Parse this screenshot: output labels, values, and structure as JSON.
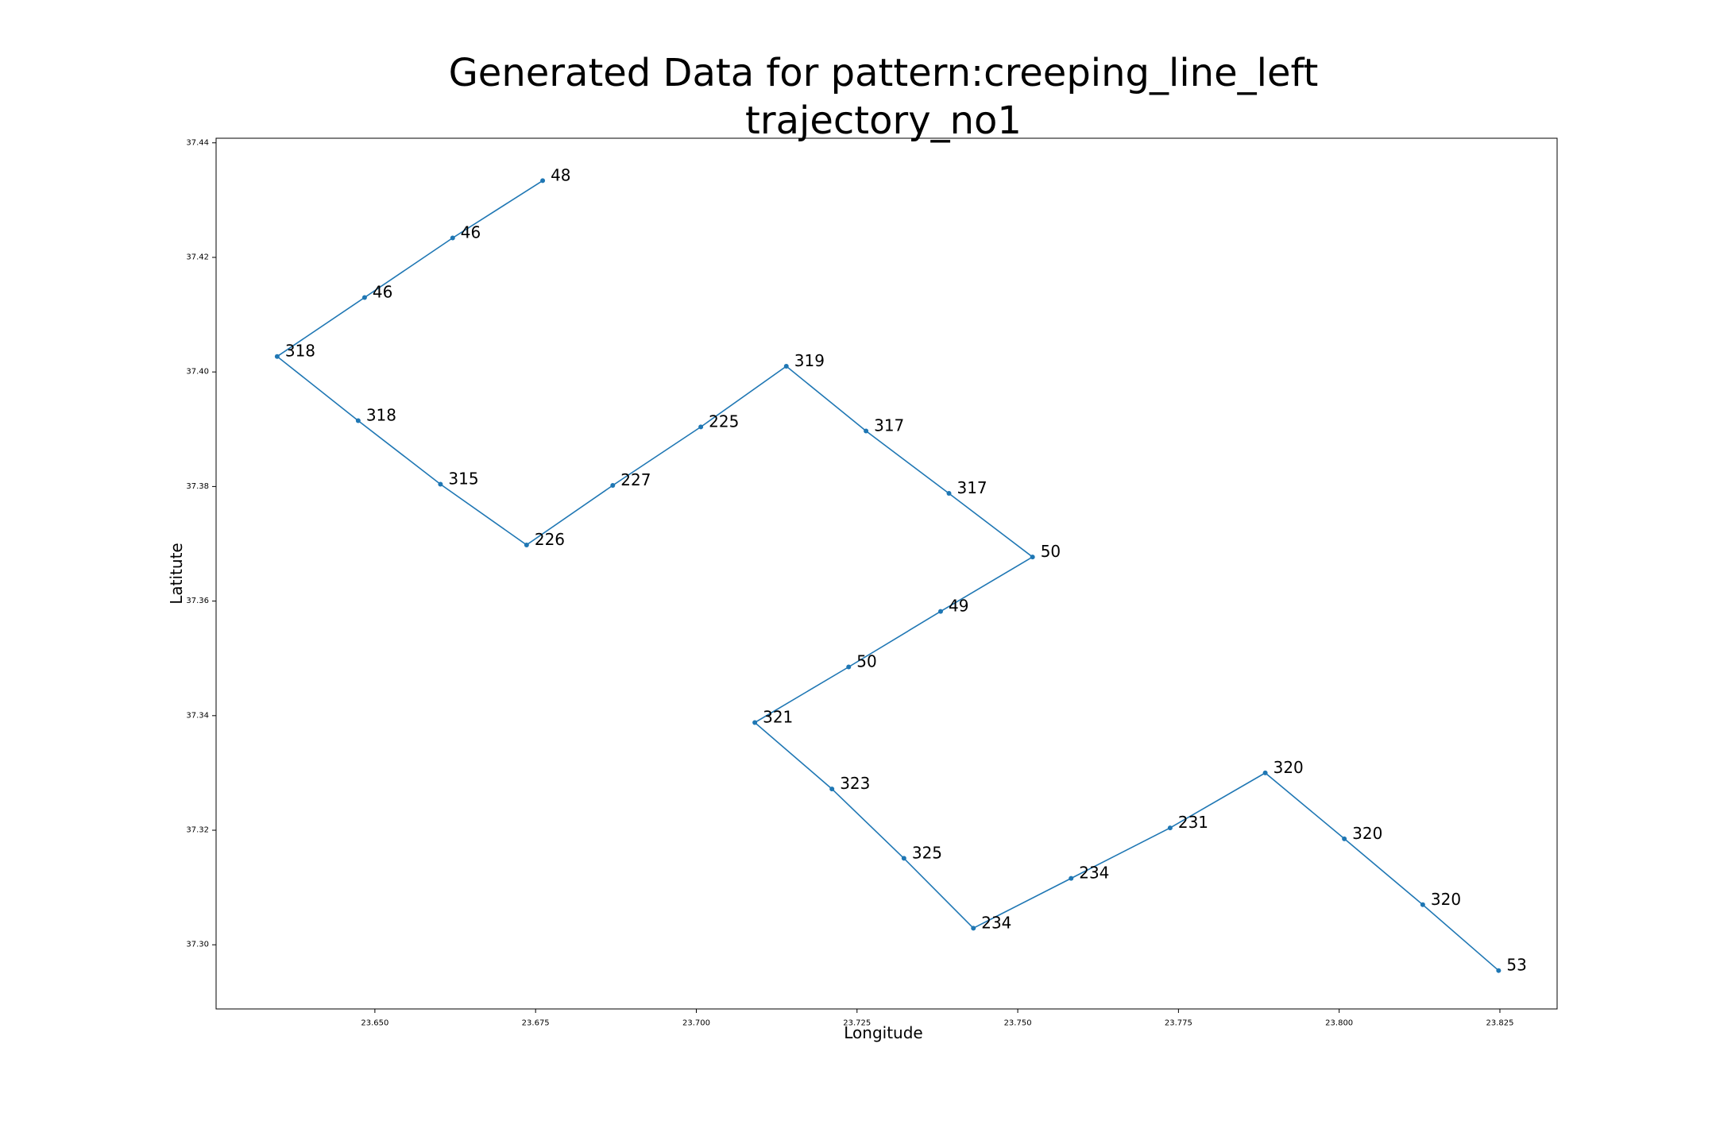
{
  "chart_data": {
    "type": "line",
    "title_line1": "Generated Data for pattern:creeping_line_left",
    "title_line2": "trajectory_no1",
    "xlabel": "Longitude",
    "ylabel": "Latitute",
    "xlim": [
      23.6253,
      23.8339
    ],
    "ylim": [
      37.2888,
      37.4408
    ],
    "xticks": [
      23.65,
      23.675,
      23.7,
      23.725,
      23.75,
      23.775,
      23.8,
      23.825
    ],
    "xtick_labels": [
      "23.650",
      "23.675",
      "23.700",
      "23.725",
      "23.750",
      "23.775",
      "23.800",
      "23.825"
    ],
    "yticks": [
      37.3,
      37.32,
      37.34,
      37.36,
      37.38,
      37.4,
      37.42,
      37.44
    ],
    "ytick_labels": [
      "37.30",
      "37.32",
      "37.34",
      "37.36",
      "37.38",
      "37.40",
      "37.42",
      "37.44"
    ],
    "line_color": "#1f77b4",
    "grid": false,
    "points": [
      {
        "x": 23.6761,
        "y": 37.4334,
        "label": "48"
      },
      {
        "x": 23.6621,
        "y": 37.4234,
        "label": "46"
      },
      {
        "x": 23.6484,
        "y": 37.413,
        "label": "46"
      },
      {
        "x": 23.6348,
        "y": 37.4027,
        "label": "318"
      },
      {
        "x": 23.6474,
        "y": 37.3915,
        "label": "318"
      },
      {
        "x": 23.6602,
        "y": 37.3804,
        "label": "315"
      },
      {
        "x": 23.6736,
        "y": 37.3698,
        "label": "226"
      },
      {
        "x": 23.687,
        "y": 37.3802,
        "label": "227"
      },
      {
        "x": 23.7007,
        "y": 37.3904,
        "label": "225"
      },
      {
        "x": 23.714,
        "y": 37.401,
        "label": "319"
      },
      {
        "x": 23.7264,
        "y": 37.3897,
        "label": "317"
      },
      {
        "x": 23.7393,
        "y": 37.3788,
        "label": "317"
      },
      {
        "x": 23.7523,
        "y": 37.3677,
        "label": "50"
      },
      {
        "x": 23.738,
        "y": 37.3582,
        "label": "49"
      },
      {
        "x": 23.7237,
        "y": 37.3485,
        "label": "50"
      },
      {
        "x": 23.7091,
        "y": 37.3388,
        "label": "321"
      },
      {
        "x": 23.7211,
        "y": 37.3272,
        "label": "323"
      },
      {
        "x": 23.7323,
        "y": 37.3151,
        "label": "325"
      },
      {
        "x": 23.7431,
        "y": 37.3029,
        "label": "234"
      },
      {
        "x": 23.7583,
        "y": 37.3116,
        "label": "234"
      },
      {
        "x": 23.7737,
        "y": 37.3204,
        "label": "231"
      },
      {
        "x": 23.7885,
        "y": 37.33,
        "label": "320"
      },
      {
        "x": 23.8008,
        "y": 37.3185,
        "label": "320"
      },
      {
        "x": 23.813,
        "y": 37.307,
        "label": "320"
      },
      {
        "x": 23.8248,
        "y": 37.2955,
        "label": "53"
      }
    ]
  }
}
